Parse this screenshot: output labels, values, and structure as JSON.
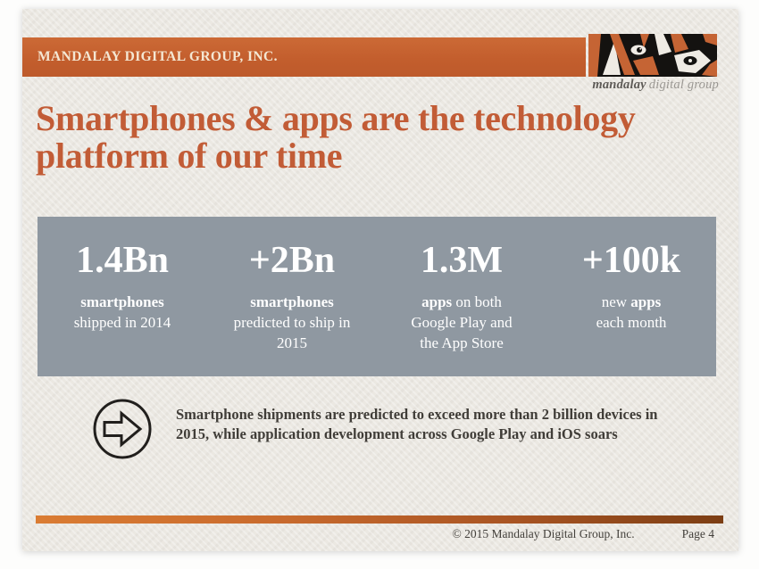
{
  "colors": {
    "header_orange": "#C35E2D",
    "title_orange": "#C25C36",
    "band_gray": "#8F98A1",
    "footer_bar_left": "#DA7C33",
    "footer_bar_right": "#7C3E14",
    "paper": "#EBE8E2"
  },
  "header": {
    "company": "MANDALAY DIGITAL GROUP, INC."
  },
  "logo": {
    "icon": "tiger-eyes-logo",
    "brand_bold": "mandalay",
    "brand_rest": "digital group"
  },
  "title": {
    "line1": "Smartphones & apps are the technology",
    "line2": "platform of our time"
  },
  "stats": {
    "items": [
      {
        "value": "1.4Bn",
        "label_lines": [
          [
            {
              "t": "smartphones",
              "b": true
            }
          ],
          [
            {
              "t": "shipped in 2014"
            }
          ]
        ]
      },
      {
        "value": "+2Bn",
        "label_lines": [
          [
            {
              "t": "smartphones",
              "b": true
            }
          ],
          [
            {
              "t": "predicted to ship in"
            }
          ],
          [
            {
              "t": "2015"
            }
          ]
        ]
      },
      {
        "value": "1.3M",
        "label_lines": [
          [
            {
              "t": "apps",
              "b": true
            },
            {
              "t": " on both"
            }
          ],
          [
            {
              "t": "Google Play and"
            }
          ],
          [
            {
              "t": "the App Store"
            }
          ]
        ]
      },
      {
        "value": "+100k",
        "label_lines": [
          [
            {
              "t": "new "
            },
            {
              "t": "apps",
              "b": true
            }
          ],
          [
            {
              "t": "each month"
            }
          ]
        ]
      }
    ]
  },
  "takeaway": {
    "icon": "right-arrow-circle",
    "line1": "Smartphone shipments are predicted to exceed more than 2 billion devices in",
    "line2": "2015, while application development across Google Play and iOS soars"
  },
  "footer": {
    "copyright": "© 2015 Mandalay Digital Group, Inc.",
    "page_label": "Page 4"
  }
}
